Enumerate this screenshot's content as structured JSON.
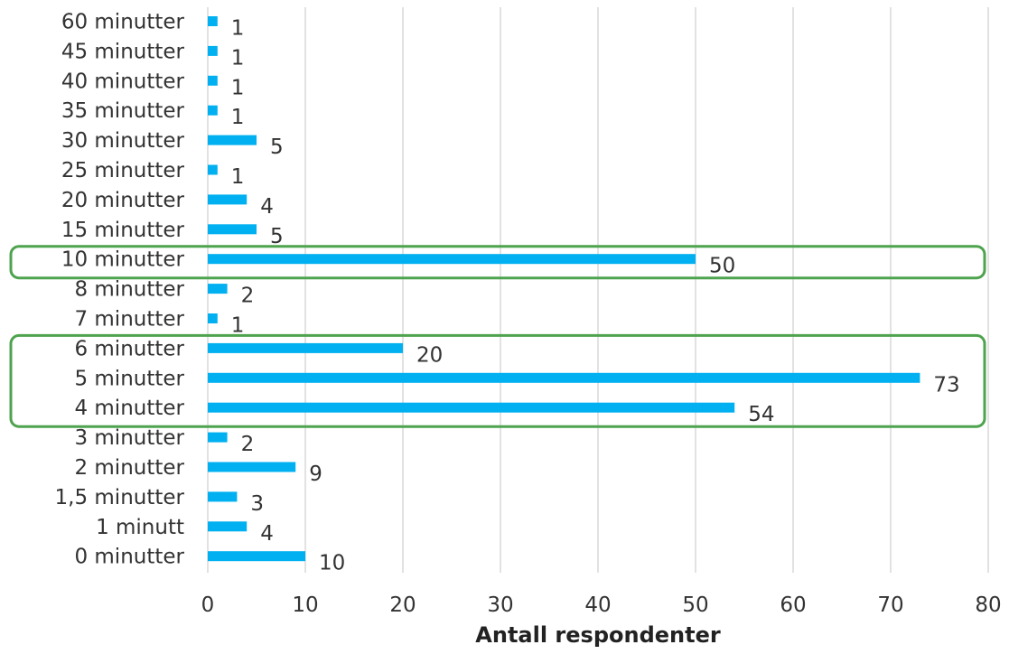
{
  "chart_data": {
    "type": "bar",
    "orientation": "horizontal",
    "categories": [
      "60 minutter",
      "45 minutter",
      "40 minutter",
      "35 minutter",
      "30 minutter",
      "25 minutter",
      "20 minutter",
      "15 minutter",
      "10 minutter",
      "8 minutter",
      "7 minutter",
      "6 minutter",
      "5 minutter",
      "4 minutter",
      "3 minutter",
      "2 minutter",
      "1,5 minutter",
      "1 minutt",
      "0 minutter"
    ],
    "values": [
      1,
      1,
      1,
      1,
      5,
      1,
      4,
      5,
      50,
      2,
      1,
      20,
      73,
      54,
      2,
      9,
      3,
      4,
      10
    ],
    "xlabel": "Antall respondenter",
    "ylabel": "",
    "xlim": [
      0,
      80
    ],
    "xticks": [
      0,
      10,
      20,
      30,
      40,
      50,
      60,
      70,
      80
    ],
    "grid": "vertical",
    "bar_color": "#00b0f0",
    "grid_color": "#d9d9d9",
    "highlight_color": "#4ea34e",
    "highlight_groups": [
      [
        "10 minutter"
      ],
      [
        "6 minutter",
        "5 minutter",
        "4 minutter"
      ]
    ]
  }
}
